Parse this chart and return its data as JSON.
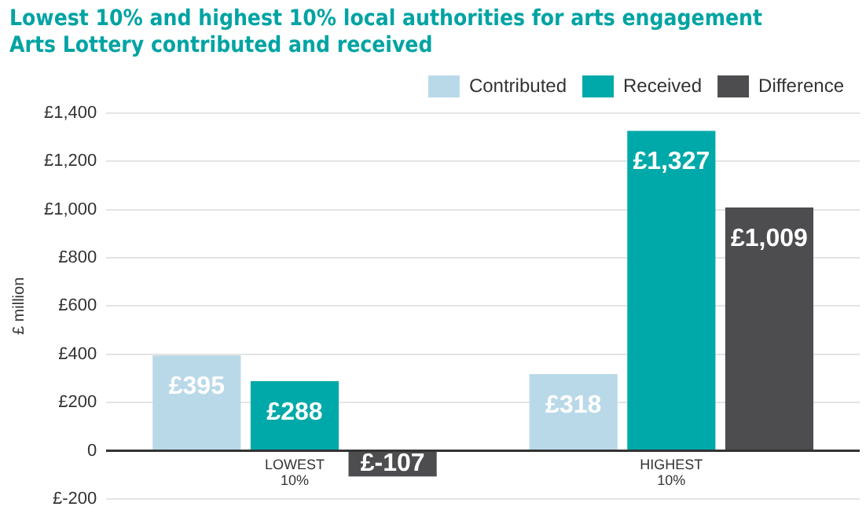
{
  "chart_data": {
    "type": "bar",
    "title": "Lowest 10% and highest 10% local authorities for arts engagement",
    "subtitle": "Arts Lottery contributed and received",
    "ylabel": "£ million",
    "categories": [
      "LOWEST 10%",
      "HIGHEST 10%"
    ],
    "series": [
      {
        "name": "Contributed",
        "color": "#b9d9e8",
        "values": [
          395,
          318
        ],
        "value_labels": [
          "£395",
          "£318"
        ]
      },
      {
        "name": "Received",
        "color": "#00a9a9",
        "values": [
          288,
          1327
        ],
        "value_labels": [
          "£288",
          "£1,327"
        ]
      },
      {
        "name": "Difference",
        "color": "#4d4d4f",
        "values": [
          -107,
          1009
        ],
        "value_labels": [
          "£-107",
          "£1,009"
        ]
      }
    ],
    "ylim": [
      -200,
      1400
    ],
    "yticks": [
      {
        "value": -200,
        "label": "£-200"
      },
      0,
      {
        "value": 200,
        "label": "£200"
      },
      {
        "value": 400,
        "label": "£400"
      },
      {
        "value": 600,
        "label": "£600"
      },
      {
        "value": 800,
        "label": "£800"
      },
      {
        "value": 1000,
        "label": "£1,000"
      },
      {
        "value": 1200,
        "label": "£1,200"
      },
      {
        "value": 1400,
        "label": "£1,400"
      }
    ],
    "grid": "y",
    "legend": "top right"
  }
}
